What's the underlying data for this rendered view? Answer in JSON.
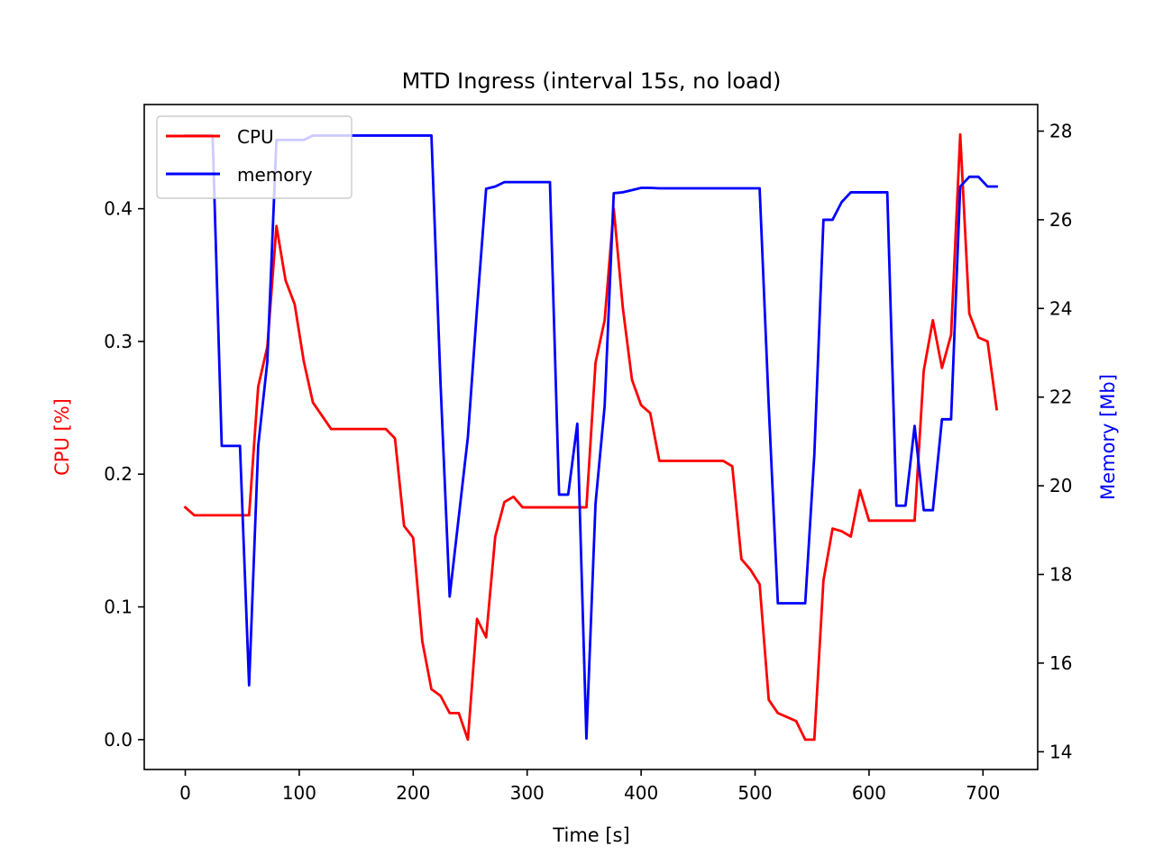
{
  "chart_data": {
    "type": "line",
    "title": "MTD Ingress (interval 15s, no load)",
    "xlabel": "Time [s]",
    "ylabel_left": "CPU [%]",
    "ylabel_right": "Memory [Mb]",
    "xlim": [
      -36,
      748
    ],
    "ylim_left": [
      -0.0225,
      0.4785
    ],
    "ylim_right": [
      13.6,
      28.6
    ],
    "xticks": [
      0,
      100,
      200,
      300,
      400,
      500,
      600,
      700
    ],
    "yticks_left": [
      0.0,
      0.1,
      0.2,
      0.3,
      0.4
    ],
    "yticks_right": [
      14,
      16,
      18,
      20,
      22,
      24,
      26,
      28
    ],
    "xtick_labels": [
      "0",
      "100",
      "200",
      "300",
      "400",
      "500",
      "600",
      "700"
    ],
    "ytick_labels_left": [
      "0.0",
      "0.1",
      "0.2",
      "0.3",
      "0.4"
    ],
    "ytick_labels_right": [
      "14",
      "16",
      "18",
      "20",
      "22",
      "24",
      "26",
      "28"
    ],
    "legend_position": "upper left",
    "grid": false,
    "colors": {
      "cpu": "#ff0000",
      "memory": "#0000ff",
      "axis": "#000000"
    },
    "series": [
      {
        "name": "CPU",
        "axis": "left",
        "color": "#ff0000",
        "points": [
          [
            0,
            0.175
          ],
          [
            8,
            0.169
          ],
          [
            16,
            0.169
          ],
          [
            24,
            0.169
          ],
          [
            32,
            0.169
          ],
          [
            40,
            0.169
          ],
          [
            48,
            0.169
          ],
          [
            56,
            0.169
          ],
          [
            64,
            0.266
          ],
          [
            72,
            0.296
          ],
          [
            80,
            0.387
          ],
          [
            88,
            0.346
          ],
          [
            96,
            0.328
          ],
          [
            104,
            0.285
          ],
          [
            112,
            0.254
          ],
          [
            120,
            0.244
          ],
          [
            128,
            0.234
          ],
          [
            136,
            0.234
          ],
          [
            144,
            0.234
          ],
          [
            152,
            0.234
          ],
          [
            160,
            0.234
          ],
          [
            168,
            0.234
          ],
          [
            176,
            0.234
          ],
          [
            184,
            0.227
          ],
          [
            192,
            0.161
          ],
          [
            200,
            0.152
          ],
          [
            208,
            0.074
          ],
          [
            216,
            0.038
          ],
          [
            224,
            0.033
          ],
          [
            232,
            0.02
          ],
          [
            240,
            0.02
          ],
          [
            248,
            0.0
          ],
          [
            256,
            0.091
          ],
          [
            264,
            0.077
          ],
          [
            272,
            0.153
          ],
          [
            280,
            0.179
          ],
          [
            288,
            0.183
          ],
          [
            296,
            0.175
          ],
          [
            304,
            0.175
          ],
          [
            312,
            0.175
          ],
          [
            320,
            0.175
          ],
          [
            328,
            0.175
          ],
          [
            336,
            0.175
          ],
          [
            344,
            0.175
          ],
          [
            352,
            0.175
          ],
          [
            360,
            0.284
          ],
          [
            368,
            0.316
          ],
          [
            376,
            0.4
          ],
          [
            384,
            0.325
          ],
          [
            392,
            0.271
          ],
          [
            400,
            0.252
          ],
          [
            408,
            0.246
          ],
          [
            416,
            0.21
          ],
          [
            424,
            0.21
          ],
          [
            432,
            0.21
          ],
          [
            440,
            0.21
          ],
          [
            448,
            0.21
          ],
          [
            456,
            0.21
          ],
          [
            464,
            0.21
          ],
          [
            472,
            0.21
          ],
          [
            480,
            0.206
          ],
          [
            488,
            0.136
          ],
          [
            496,
            0.128
          ],
          [
            504,
            0.117
          ],
          [
            512,
            0.03
          ],
          [
            520,
            0.02
          ],
          [
            528,
            0.017
          ],
          [
            536,
            0.014
          ],
          [
            544,
            0.0
          ],
          [
            552,
            0.0
          ],
          [
            560,
            0.12
          ],
          [
            568,
            0.159
          ],
          [
            576,
            0.157
          ],
          [
            584,
            0.153
          ],
          [
            592,
            0.188
          ],
          [
            600,
            0.165
          ],
          [
            608,
            0.165
          ],
          [
            616,
            0.165
          ],
          [
            624,
            0.165
          ],
          [
            632,
            0.165
          ],
          [
            640,
            0.165
          ],
          [
            648,
            0.278
          ],
          [
            656,
            0.316
          ],
          [
            664,
            0.28
          ],
          [
            672,
            0.305
          ],
          [
            680,
            0.456
          ],
          [
            688,
            0.321
          ],
          [
            696,
            0.303
          ],
          [
            704,
            0.3
          ],
          [
            712,
            0.249
          ]
        ]
      },
      {
        "name": "memory",
        "axis": "right",
        "color": "#0000ff",
        "points": [
          [
            0,
            27.9
          ],
          [
            8,
            27.9
          ],
          [
            16,
            27.9
          ],
          [
            24,
            27.9
          ],
          [
            32,
            20.9
          ],
          [
            40,
            20.9
          ],
          [
            48,
            20.9
          ],
          [
            56,
            15.5
          ],
          [
            64,
            20.9
          ],
          [
            72,
            22.8
          ],
          [
            80,
            27.8
          ],
          [
            88,
            27.8
          ],
          [
            96,
            27.8
          ],
          [
            104,
            27.8
          ],
          [
            112,
            27.9
          ],
          [
            120,
            27.9
          ],
          [
            128,
            27.9
          ],
          [
            136,
            27.9
          ],
          [
            144,
            27.9
          ],
          [
            152,
            27.9
          ],
          [
            160,
            27.9
          ],
          [
            168,
            27.9
          ],
          [
            176,
            27.9
          ],
          [
            184,
            27.9
          ],
          [
            192,
            27.9
          ],
          [
            200,
            27.9
          ],
          [
            208,
            27.9
          ],
          [
            216,
            27.9
          ],
          [
            224,
            22.3
          ],
          [
            232,
            17.5
          ],
          [
            240,
            19.3
          ],
          [
            248,
            21.1
          ],
          [
            256,
            24.0
          ],
          [
            264,
            26.7
          ],
          [
            272,
            26.75
          ],
          [
            280,
            26.85
          ],
          [
            288,
            26.85
          ],
          [
            296,
            26.85
          ],
          [
            304,
            26.85
          ],
          [
            312,
            26.85
          ],
          [
            320,
            26.85
          ],
          [
            328,
            19.8
          ],
          [
            336,
            19.8
          ],
          [
            344,
            21.4
          ],
          [
            352,
            14.3
          ],
          [
            360,
            19.6
          ],
          [
            368,
            21.8
          ],
          [
            376,
            26.6
          ],
          [
            384,
            26.62
          ],
          [
            392,
            26.67
          ],
          [
            400,
            26.72
          ],
          [
            408,
            26.72
          ],
          [
            416,
            26.71
          ],
          [
            424,
            26.71
          ],
          [
            432,
            26.71
          ],
          [
            440,
            26.71
          ],
          [
            448,
            26.71
          ],
          [
            456,
            26.71
          ],
          [
            464,
            26.71
          ],
          [
            472,
            26.71
          ],
          [
            480,
            26.71
          ],
          [
            488,
            26.71
          ],
          [
            496,
            26.71
          ],
          [
            504,
            26.71
          ],
          [
            512,
            21.8
          ],
          [
            520,
            17.35
          ],
          [
            528,
            17.35
          ],
          [
            536,
            17.35
          ],
          [
            544,
            17.35
          ],
          [
            552,
            20.7
          ],
          [
            560,
            26.0
          ],
          [
            568,
            26.0
          ],
          [
            576,
            26.4
          ],
          [
            584,
            26.62
          ],
          [
            592,
            26.62
          ],
          [
            600,
            26.62
          ],
          [
            608,
            26.62
          ],
          [
            616,
            26.62
          ],
          [
            624,
            19.55
          ],
          [
            632,
            19.55
          ],
          [
            640,
            21.35
          ],
          [
            648,
            19.45
          ],
          [
            656,
            19.45
          ],
          [
            664,
            21.5
          ],
          [
            672,
            21.5
          ],
          [
            680,
            26.75
          ],
          [
            688,
            26.97
          ],
          [
            696,
            26.97
          ],
          [
            704,
            26.75
          ],
          [
            712,
            26.75
          ]
        ]
      }
    ]
  }
}
